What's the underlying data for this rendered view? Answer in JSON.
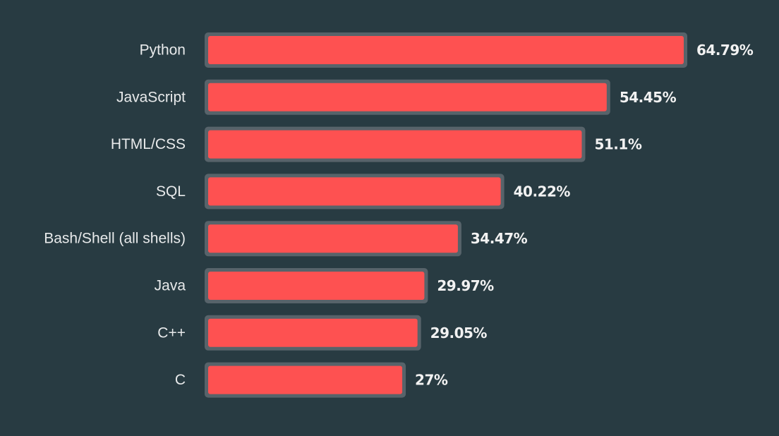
{
  "chart_data": {
    "type": "bar",
    "orientation": "horizontal",
    "categories": [
      "Python",
      "JavaScript",
      "HTML/CSS",
      "SQL",
      "Bash/Shell (all shells)",
      "Java",
      "C++",
      "C"
    ],
    "values": [
      64.79,
      54.45,
      51.1,
      40.22,
      34.47,
      29.97,
      29.05,
      27
    ],
    "value_labels": [
      "64.79%",
      "54.45%",
      "51.1%",
      "40.22%",
      "34.47%",
      "29.97%",
      "29.05%",
      "27%"
    ],
    "title": "",
    "xlabel": "",
    "ylabel": "",
    "xlim": [
      0,
      64.79
    ],
    "grid": false,
    "legend": "none"
  },
  "colors": {
    "background": "#283b42",
    "bar_fill": "#fe5151",
    "bar_border": "#57636a",
    "category_text": "#e8eaeb",
    "value_text": "#f2f2f2"
  }
}
